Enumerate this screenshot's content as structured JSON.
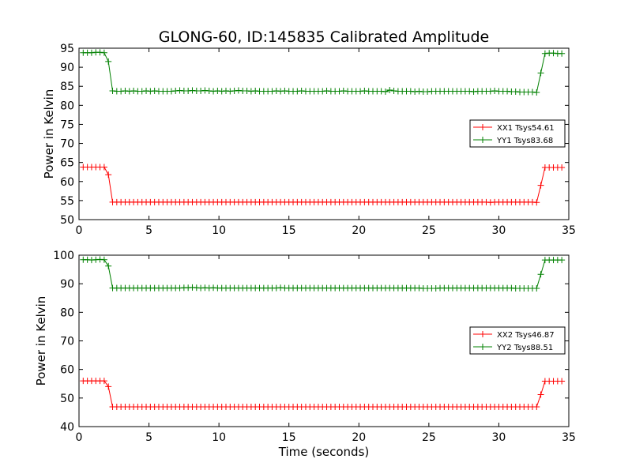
{
  "title": "GLONG-60, ID:145835 Calibrated Amplitude",
  "colors": {
    "red": "#ff0000",
    "green": "#008000",
    "axes": "#000000"
  },
  "chart_data": [
    {
      "type": "line",
      "title": "GLONG-60, ID:145835 Calibrated Amplitude",
      "xlabel": "",
      "ylabel": "Power in Kelvin",
      "xlim": [
        0,
        35
      ],
      "ylim": [
        50,
        95
      ],
      "xticks": [
        0,
        5,
        10,
        15,
        20,
        25,
        30,
        35
      ],
      "yticks": [
        50,
        55,
        60,
        65,
        70,
        75,
        80,
        85,
        90,
        95
      ],
      "grid": false,
      "legend_position": "right",
      "series": [
        {
          "name": "XX1 Tsys54.61",
          "color": "#ff0000",
          "marker": "+",
          "x": [
            0.3,
            0.6,
            0.9,
            1.2,
            1.5,
            1.8,
            2.1,
            2.4,
            2.7,
            3.0,
            3.3,
            3.6,
            3.9,
            4.2,
            4.5,
            4.8,
            5.1,
            5.4,
            5.7,
            6.0,
            6.3,
            6.6,
            6.9,
            7.2,
            7.5,
            7.8,
            8.1,
            8.4,
            8.7,
            9.0,
            9.3,
            9.6,
            9.9,
            10.2,
            10.5,
            10.8,
            11.1,
            11.4,
            11.7,
            12.0,
            12.3,
            12.6,
            12.9,
            13.2,
            13.5,
            13.8,
            14.1,
            14.4,
            14.7,
            15.0,
            15.3,
            15.6,
            15.9,
            16.2,
            16.5,
            16.8,
            17.1,
            17.4,
            17.7,
            18.0,
            18.3,
            18.6,
            18.9,
            19.2,
            19.5,
            19.8,
            20.1,
            20.4,
            20.7,
            21.0,
            21.3,
            21.6,
            21.9,
            22.2,
            22.5,
            22.8,
            23.1,
            23.4,
            23.7,
            24.0,
            24.3,
            24.6,
            24.9,
            25.2,
            25.5,
            25.8,
            26.1,
            26.4,
            26.7,
            27.0,
            27.3,
            27.6,
            27.9,
            28.2,
            28.5,
            28.8,
            29.1,
            29.4,
            29.7,
            30.0,
            30.3,
            30.6,
            30.9,
            31.2,
            31.5,
            31.8,
            32.1,
            32.4,
            32.7,
            33.0,
            33.3,
            33.6,
            33.9,
            34.2,
            34.5
          ],
          "values": [
            63.8,
            63.8,
            63.8,
            63.8,
            63.8,
            63.8,
            61.8,
            54.6,
            54.6,
            54.6,
            54.6,
            54.6,
            54.6,
            54.6,
            54.6,
            54.6,
            54.6,
            54.6,
            54.6,
            54.6,
            54.6,
            54.6,
            54.6,
            54.6,
            54.6,
            54.6,
            54.6,
            54.6,
            54.6,
            54.6,
            54.6,
            54.6,
            54.6,
            54.6,
            54.6,
            54.6,
            54.6,
            54.6,
            54.6,
            54.6,
            54.6,
            54.6,
            54.6,
            54.6,
            54.6,
            54.6,
            54.6,
            54.6,
            54.6,
            54.6,
            54.6,
            54.6,
            54.6,
            54.6,
            54.6,
            54.6,
            54.6,
            54.6,
            54.6,
            54.6,
            54.6,
            54.6,
            54.6,
            54.6,
            54.6,
            54.6,
            54.6,
            54.6,
            54.6,
            54.6,
            54.6,
            54.6,
            54.6,
            54.6,
            54.6,
            54.6,
            54.6,
            54.6,
            54.6,
            54.6,
            54.6,
            54.6,
            54.6,
            54.6,
            54.6,
            54.6,
            54.6,
            54.6,
            54.6,
            54.6,
            54.6,
            54.6,
            54.6,
            54.6,
            54.6,
            54.6,
            54.6,
            54.5,
            54.6,
            54.6,
            54.6,
            54.6,
            54.6,
            54.6,
            54.6,
            54.6,
            54.6,
            54.6,
            54.5,
            59.0,
            63.7,
            63.7,
            63.7,
            63.7,
            63.7
          ]
        },
        {
          "name": "YY1 Tsys83.68",
          "color": "#008000",
          "marker": "+",
          "x": [
            0.3,
            0.6,
            0.9,
            1.2,
            1.5,
            1.8,
            2.1,
            2.4,
            2.7,
            3.0,
            3.3,
            3.6,
            3.9,
            4.2,
            4.5,
            4.8,
            5.1,
            5.4,
            5.7,
            6.0,
            6.3,
            6.6,
            6.9,
            7.2,
            7.5,
            7.8,
            8.1,
            8.4,
            8.7,
            9.0,
            9.3,
            9.6,
            9.9,
            10.2,
            10.5,
            10.8,
            11.1,
            11.4,
            11.7,
            12.0,
            12.3,
            12.6,
            12.9,
            13.2,
            13.5,
            13.8,
            14.1,
            14.4,
            14.7,
            15.0,
            15.3,
            15.6,
            15.9,
            16.2,
            16.5,
            16.8,
            17.1,
            17.4,
            17.7,
            18.0,
            18.3,
            18.6,
            18.9,
            19.2,
            19.5,
            19.8,
            20.1,
            20.4,
            20.7,
            21.0,
            21.3,
            21.6,
            21.9,
            22.2,
            22.5,
            22.8,
            23.1,
            23.4,
            23.7,
            24.0,
            24.3,
            24.6,
            24.9,
            25.2,
            25.5,
            25.8,
            26.1,
            26.4,
            26.7,
            27.0,
            27.3,
            27.6,
            27.9,
            28.2,
            28.5,
            28.8,
            29.1,
            29.4,
            29.7,
            30.0,
            30.3,
            30.6,
            30.9,
            31.2,
            31.5,
            31.8,
            32.1,
            32.4,
            32.7,
            33.0,
            33.3,
            33.6,
            33.9,
            34.2,
            34.5
          ],
          "values": [
            93.8,
            93.8,
            93.8,
            93.9,
            93.9,
            93.8,
            91.5,
            83.8,
            83.7,
            83.7,
            83.8,
            83.7,
            83.8,
            83.7,
            83.7,
            83.8,
            83.7,
            83.8,
            83.7,
            83.7,
            83.7,
            83.7,
            83.8,
            83.9,
            83.8,
            83.8,
            83.9,
            83.8,
            83.8,
            83.9,
            83.8,
            83.7,
            83.8,
            83.7,
            83.8,
            83.7,
            83.8,
            83.9,
            83.8,
            83.8,
            83.7,
            83.8,
            83.7,
            83.7,
            83.7,
            83.7,
            83.8,
            83.7,
            83.8,
            83.7,
            83.7,
            83.7,
            83.8,
            83.7,
            83.7,
            83.7,
            83.7,
            83.7,
            83.8,
            83.7,
            83.7,
            83.7,
            83.8,
            83.7,
            83.7,
            83.7,
            83.7,
            83.8,
            83.7,
            83.7,
            83.7,
            83.7,
            83.6,
            84.0,
            83.8,
            83.7,
            83.7,
            83.7,
            83.7,
            83.6,
            83.7,
            83.6,
            83.6,
            83.7,
            83.7,
            83.7,
            83.7,
            83.7,
            83.7,
            83.7,
            83.7,
            83.7,
            83.7,
            83.6,
            83.7,
            83.7,
            83.7,
            83.7,
            83.8,
            83.7,
            83.7,
            83.7,
            83.6,
            83.6,
            83.5,
            83.5,
            83.5,
            83.5,
            83.4,
            88.5,
            93.6,
            93.7,
            93.7,
            93.6,
            93.6
          ]
        }
      ]
    },
    {
      "type": "line",
      "title": "",
      "xlabel": "Time (seconds)",
      "ylabel": "Power in Kelvin",
      "xlim": [
        0,
        35
      ],
      "ylim": [
        40,
        100
      ],
      "xticks": [
        0,
        5,
        10,
        15,
        20,
        25,
        30,
        35
      ],
      "yticks": [
        40,
        50,
        60,
        70,
        80,
        90,
        100
      ],
      "grid": false,
      "legend_position": "right",
      "series": [
        {
          "name": "XX2 Tsys46.87",
          "color": "#ff0000",
          "marker": "+",
          "x": [
            0.3,
            0.6,
            0.9,
            1.2,
            1.5,
            1.8,
            2.1,
            2.4,
            2.7,
            3.0,
            3.3,
            3.6,
            3.9,
            4.2,
            4.5,
            4.8,
            5.1,
            5.4,
            5.7,
            6.0,
            6.3,
            6.6,
            6.9,
            7.2,
            7.5,
            7.8,
            8.1,
            8.4,
            8.7,
            9.0,
            9.3,
            9.6,
            9.9,
            10.2,
            10.5,
            10.8,
            11.1,
            11.4,
            11.7,
            12.0,
            12.3,
            12.6,
            12.9,
            13.2,
            13.5,
            13.8,
            14.1,
            14.4,
            14.7,
            15.0,
            15.3,
            15.6,
            15.9,
            16.2,
            16.5,
            16.8,
            17.1,
            17.4,
            17.7,
            18.0,
            18.3,
            18.6,
            18.9,
            19.2,
            19.5,
            19.8,
            20.1,
            20.4,
            20.7,
            21.0,
            21.3,
            21.6,
            21.9,
            22.2,
            22.5,
            22.8,
            23.1,
            23.4,
            23.7,
            24.0,
            24.3,
            24.6,
            24.9,
            25.2,
            25.5,
            25.8,
            26.1,
            26.4,
            26.7,
            27.0,
            27.3,
            27.6,
            27.9,
            28.2,
            28.5,
            28.8,
            29.1,
            29.4,
            29.7,
            30.0,
            30.3,
            30.6,
            30.9,
            31.2,
            31.5,
            31.8,
            32.1,
            32.4,
            32.7,
            33.0,
            33.3,
            33.6,
            33.9,
            34.2,
            34.5
          ],
          "values": [
            56.0,
            56.0,
            56.0,
            56.0,
            56.0,
            56.0,
            54.0,
            46.9,
            46.9,
            46.9,
            46.9,
            46.9,
            46.9,
            46.9,
            46.9,
            46.9,
            46.9,
            46.9,
            46.9,
            46.9,
            46.9,
            46.9,
            46.9,
            46.9,
            46.9,
            46.9,
            46.9,
            46.9,
            46.9,
            46.9,
            46.9,
            46.9,
            46.9,
            46.9,
            46.9,
            46.9,
            46.9,
            46.9,
            46.9,
            46.9,
            46.9,
            46.9,
            46.9,
            46.9,
            46.9,
            46.9,
            46.9,
            46.9,
            46.9,
            46.9,
            46.9,
            46.9,
            46.9,
            46.9,
            46.9,
            46.9,
            46.9,
            46.9,
            46.9,
            46.9,
            46.9,
            46.9,
            46.9,
            46.9,
            46.9,
            46.9,
            46.9,
            46.9,
            46.9,
            46.9,
            46.9,
            46.9,
            46.9,
            46.9,
            46.9,
            46.9,
            46.9,
            46.9,
            46.9,
            46.9,
            46.9,
            46.9,
            46.9,
            46.9,
            46.9,
            46.9,
            46.9,
            46.9,
            46.9,
            46.9,
            46.9,
            46.9,
            46.9,
            46.9,
            46.9,
            46.9,
            46.9,
            46.9,
            46.9,
            46.9,
            46.9,
            46.9,
            46.9,
            46.9,
            46.9,
            46.9,
            46.9,
            46.9,
            46.9,
            51.2,
            55.9,
            55.9,
            55.9,
            55.9,
            55.9
          ]
        },
        {
          "name": "YY2 Tsys88.51",
          "color": "#008000",
          "marker": "+",
          "x": [
            0.3,
            0.6,
            0.9,
            1.2,
            1.5,
            1.8,
            2.1,
            2.4,
            2.7,
            3.0,
            3.3,
            3.6,
            3.9,
            4.2,
            4.5,
            4.8,
            5.1,
            5.4,
            5.7,
            6.0,
            6.3,
            6.6,
            6.9,
            7.2,
            7.5,
            7.8,
            8.1,
            8.4,
            8.7,
            9.0,
            9.3,
            9.6,
            9.9,
            10.2,
            10.5,
            10.8,
            11.1,
            11.4,
            11.7,
            12.0,
            12.3,
            12.6,
            12.9,
            13.2,
            13.5,
            13.8,
            14.1,
            14.4,
            14.7,
            15.0,
            15.3,
            15.6,
            15.9,
            16.2,
            16.5,
            16.8,
            17.1,
            17.4,
            17.7,
            18.0,
            18.3,
            18.6,
            18.9,
            19.2,
            19.5,
            19.8,
            20.1,
            20.4,
            20.7,
            21.0,
            21.3,
            21.6,
            21.9,
            22.2,
            22.5,
            22.8,
            23.1,
            23.4,
            23.7,
            24.0,
            24.3,
            24.6,
            24.9,
            25.2,
            25.5,
            25.8,
            26.1,
            26.4,
            26.7,
            27.0,
            27.3,
            27.6,
            27.9,
            28.2,
            28.5,
            28.8,
            29.1,
            29.4,
            29.7,
            30.0,
            30.3,
            30.6,
            30.9,
            31.2,
            31.5,
            31.8,
            32.1,
            32.4,
            32.7,
            33.0,
            33.3,
            33.6,
            33.9,
            34.2,
            34.5
          ],
          "values": [
            98.4,
            98.4,
            98.3,
            98.4,
            98.5,
            98.4,
            96.2,
            88.5,
            88.5,
            88.5,
            88.5,
            88.5,
            88.5,
            88.5,
            88.5,
            88.5,
            88.5,
            88.5,
            88.5,
            88.5,
            88.5,
            88.5,
            88.5,
            88.5,
            88.6,
            88.6,
            88.7,
            88.6,
            88.5,
            88.6,
            88.5,
            88.6,
            88.5,
            88.5,
            88.5,
            88.5,
            88.5,
            88.5,
            88.5,
            88.5,
            88.5,
            88.5,
            88.5,
            88.5,
            88.5,
            88.5,
            88.5,
            88.6,
            88.5,
            88.5,
            88.5,
            88.5,
            88.5,
            88.5,
            88.5,
            88.5,
            88.5,
            88.5,
            88.5,
            88.5,
            88.5,
            88.5,
            88.5,
            88.5,
            88.5,
            88.5,
            88.5,
            88.5,
            88.5,
            88.5,
            88.5,
            88.5,
            88.5,
            88.5,
            88.5,
            88.5,
            88.5,
            88.5,
            88.5,
            88.5,
            88.5,
            88.4,
            88.4,
            88.4,
            88.4,
            88.5,
            88.5,
            88.5,
            88.5,
            88.5,
            88.5,
            88.5,
            88.5,
            88.5,
            88.5,
            88.5,
            88.5,
            88.5,
            88.5,
            88.5,
            88.5,
            88.5,
            88.5,
            88.4,
            88.4,
            88.4,
            88.4,
            88.4,
            88.4,
            93.3,
            98.3,
            98.3,
            98.3,
            98.3,
            98.3
          ]
        }
      ]
    }
  ]
}
